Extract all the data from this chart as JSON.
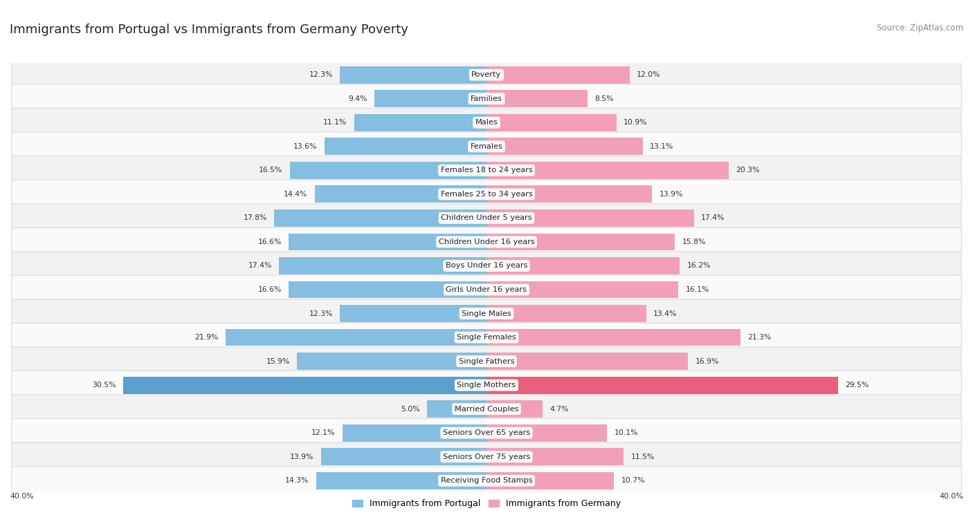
{
  "title": "Immigrants from Portugal vs Immigrants from Germany Poverty",
  "source": "Source: ZipAtlas.com",
  "categories": [
    "Poverty",
    "Families",
    "Males",
    "Females",
    "Females 18 to 24 years",
    "Females 25 to 34 years",
    "Children Under 5 years",
    "Children Under 16 years",
    "Boys Under 16 years",
    "Girls Under 16 years",
    "Single Males",
    "Single Females",
    "Single Fathers",
    "Single Mothers",
    "Married Couples",
    "Seniors Over 65 years",
    "Seniors Over 75 years",
    "Receiving Food Stamps"
  ],
  "portugal_values": [
    12.3,
    9.4,
    11.1,
    13.6,
    16.5,
    14.4,
    17.8,
    16.6,
    17.4,
    16.6,
    12.3,
    21.9,
    15.9,
    30.5,
    5.0,
    12.1,
    13.9,
    14.3
  ],
  "germany_values": [
    12.0,
    8.5,
    10.9,
    13.1,
    20.3,
    13.9,
    17.4,
    15.8,
    16.2,
    16.1,
    13.4,
    21.3,
    16.9,
    29.5,
    4.7,
    10.1,
    11.5,
    10.7
  ],
  "portugal_color": "#85BEE0",
  "germany_color": "#F2A0B5",
  "portugal_highlight": "#5B9FCC",
  "germany_highlight": "#E8607A",
  "portugal_label": "Immigrants from Portugal",
  "germany_label": "Immigrants from Germany",
  "xlim": 40.0,
  "bg_color": "#FFFFFF",
  "row_bg_even": "#F2F2F2",
  "row_bg_odd": "#FAFAFA",
  "title_fontsize": 13,
  "source_fontsize": 8.5,
  "cat_fontsize": 8.2,
  "value_fontsize": 7.8
}
